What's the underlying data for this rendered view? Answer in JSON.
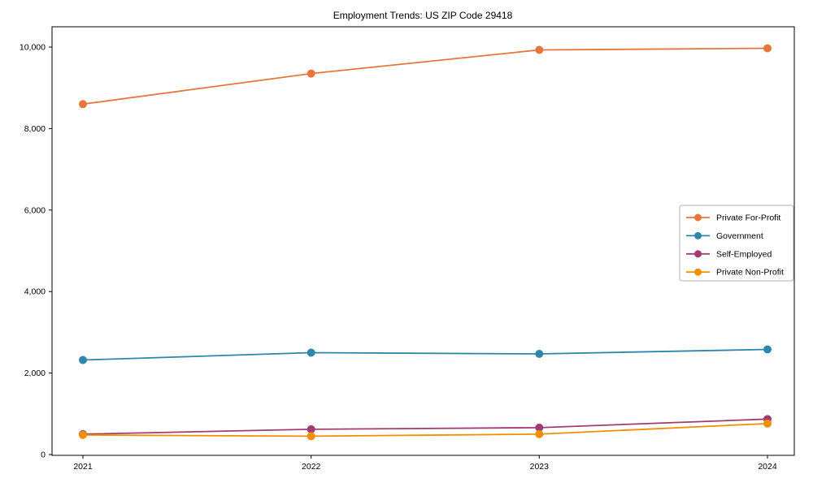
{
  "figure": {
    "background": "#ffffff",
    "axis_color": "#000000",
    "legend_border_color": "#b3b3b3",
    "legend_background": "#ffffff"
  },
  "chart_data": {
    "type": "line",
    "title": "Employment Trends: US ZIP Code 29418",
    "xlabel": "",
    "ylabel": "",
    "x": [
      2021,
      2022,
      2023,
      2024
    ],
    "xtick_labels": [
      "2021",
      "2022",
      "2023",
      "2024"
    ],
    "ytick_values": [
      0,
      2000,
      4000,
      6000,
      8000,
      10000
    ],
    "ytick_labels": [
      "0",
      "2,000",
      "4,000",
      "6,000",
      "8,000",
      "10,000"
    ],
    "ylim": [
      0,
      10500
    ],
    "grid": false,
    "legend_position": "center-right",
    "marker": "circle",
    "series": [
      {
        "name": "Private For-Profit",
        "color": "#E8763B",
        "values": [
          8600,
          9350,
          9930,
          9970
        ]
      },
      {
        "name": "Government",
        "color": "#2E86AB",
        "values": [
          2320,
          2500,
          2470,
          2580
        ]
      },
      {
        "name": "Self-Employed",
        "color": "#A23B72",
        "values": [
          500,
          620,
          660,
          870
        ]
      },
      {
        "name": "Private Non-Profit",
        "color": "#F18F01",
        "values": [
          480,
          450,
          500,
          760
        ]
      }
    ]
  }
}
